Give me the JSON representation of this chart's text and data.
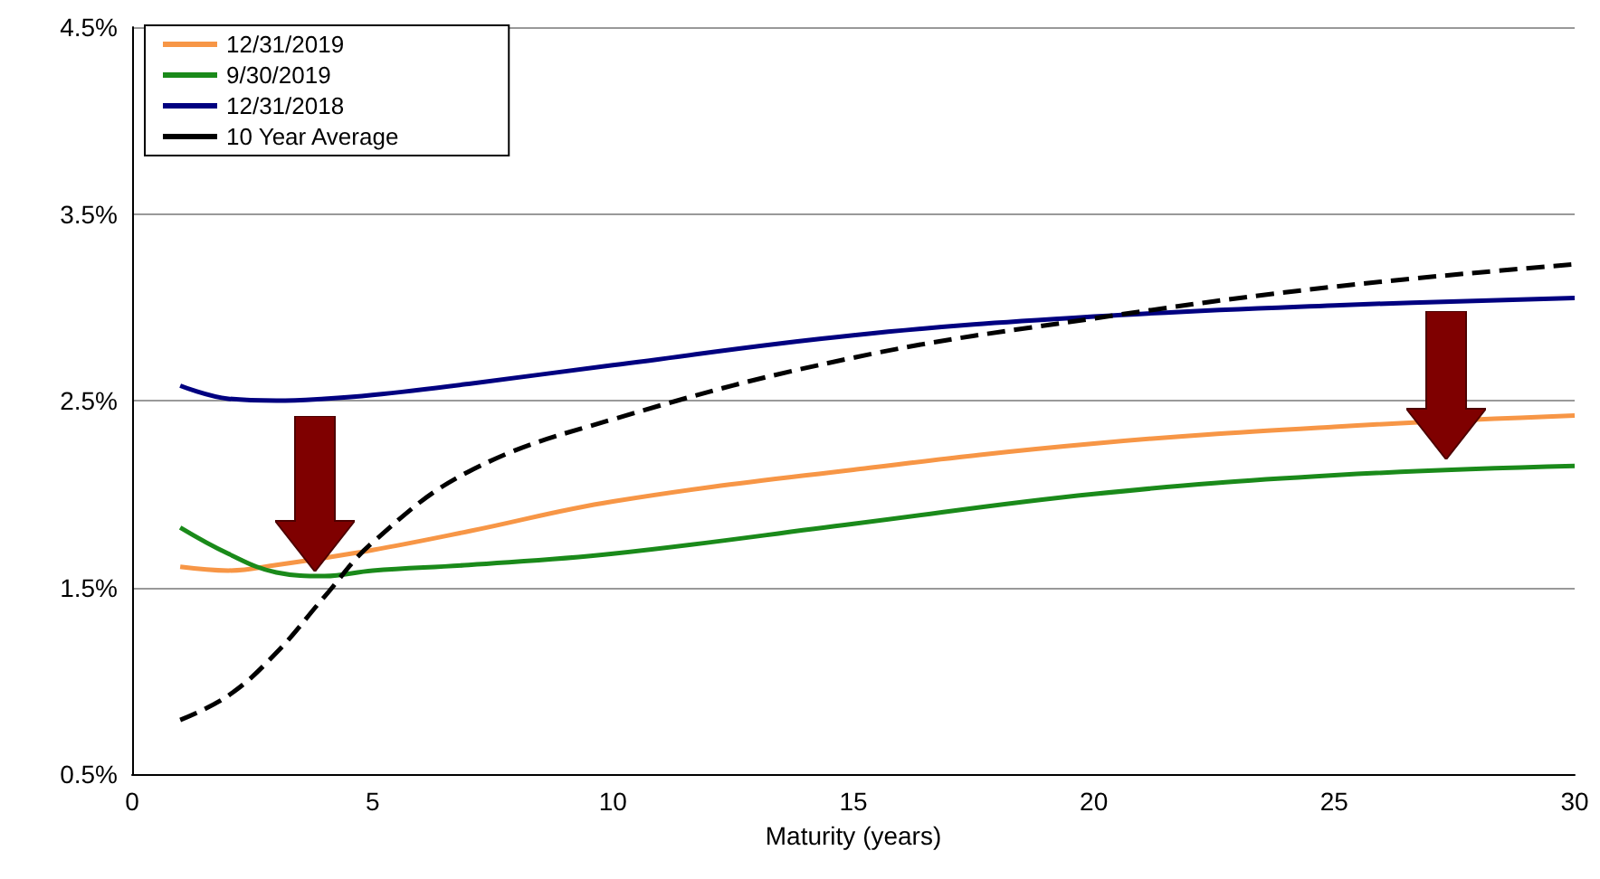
{
  "chart_data": {
    "type": "line",
    "xlabel": "Maturity (years)",
    "xlim": [
      0,
      30
    ],
    "xticks": [
      0,
      5,
      10,
      15,
      20,
      25,
      30
    ],
    "ylim": [
      0.5,
      4.5
    ],
    "yticks": [
      {
        "value": 0.5,
        "label": "0.5%"
      },
      {
        "value": 1.5,
        "label": "1.5%"
      },
      {
        "value": 2.5,
        "label": "2.5%"
      },
      {
        "value": 3.5,
        "label": "3.5%"
      },
      {
        "value": 4.5,
        "label": "4.5%"
      }
    ],
    "grid": "y",
    "legend": "top left",
    "marker": "none",
    "x": [
      1,
      2,
      3,
      4,
      5,
      7,
      10,
      15,
      20,
      25,
      30
    ],
    "series": [
      {
        "name": "12/31/2019",
        "color": "#f79646",
        "x": [
          1,
          2,
          3,
          5,
          7,
          10,
          15,
          20,
          25,
          30
        ],
        "values": [
          1.61,
          1.59,
          1.62,
          1.7,
          1.8,
          1.96,
          2.13,
          2.27,
          2.36,
          2.42
        ]
      },
      {
        "name": "9/30/2019",
        "color": "#1a8a1a",
        "values": [
          1.82,
          1.68,
          1.58,
          1.56,
          1.59,
          1.62,
          1.68,
          1.84,
          2.0,
          2.1,
          2.15
        ]
      },
      {
        "name": "12/31/2018",
        "color": "#000080",
        "values": [
          2.58,
          2.51,
          2.5,
          2.51,
          2.53,
          2.59,
          2.69,
          2.85,
          2.95,
          3.01,
          3.05
        ]
      },
      {
        "name": "10 Year Average",
        "color": "#000000",
        "line_style": "dashed",
        "values": [
          0.79,
          0.92,
          1.15,
          1.45,
          1.74,
          2.12,
          2.4,
          2.73,
          2.94,
          3.11,
          3.23
        ]
      }
    ]
  }
}
